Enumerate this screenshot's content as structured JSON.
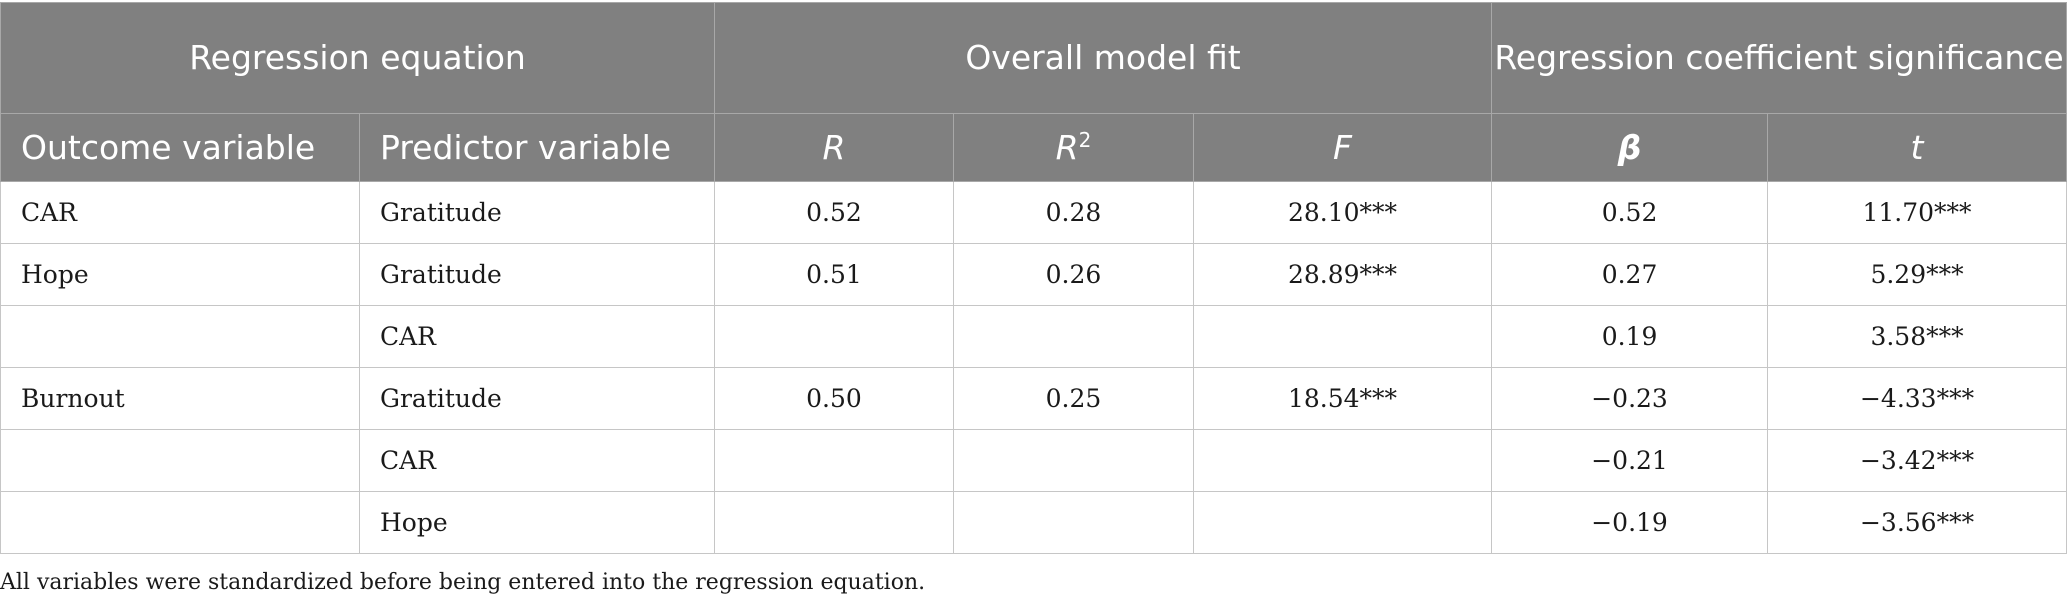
{
  "table": {
    "group_headers": [
      {
        "label": "Regression equation"
      },
      {
        "label": "Overall model fit"
      },
      {
        "label": "Regression coefficient significance"
      }
    ],
    "column_headers": {
      "outcome": "Outcome variable",
      "predictor": "Predictor variable",
      "r": "R",
      "r2_base": "R",
      "r2_sup": "2",
      "f": "F",
      "beta": "β",
      "t": "t"
    },
    "rows": [
      {
        "outcome": "CAR",
        "predictor": "Gratitude",
        "r": "0.52",
        "r2": "0.28",
        "f": "28.10***",
        "beta": "0.52",
        "t": "11.70***"
      },
      {
        "outcome": "Hope",
        "predictor": "Gratitude",
        "r": "0.51",
        "r2": "0.26",
        "f": "28.89***",
        "beta": "0.27",
        "t": "5.29***"
      },
      {
        "outcome": "",
        "predictor": "CAR",
        "r": "",
        "r2": "",
        "f": "",
        "beta": "0.19",
        "t": "3.58***"
      },
      {
        "outcome": "Burnout",
        "predictor": "Gratitude",
        "r": "0.50",
        "r2": "0.25",
        "f": "18.54***",
        "beta": "−0.23",
        "t": "−4.33***"
      },
      {
        "outcome": "",
        "predictor": "CAR",
        "r": "",
        "r2": "",
        "f": "",
        "beta": "−0.21",
        "t": "−3.42***"
      },
      {
        "outcome": "",
        "predictor": "Hope",
        "r": "",
        "r2": "",
        "f": "",
        "beta": "−0.19",
        "t": "−3.56***"
      }
    ]
  },
  "footnote": "All variables were standardized before being entered into the regression equation."
}
